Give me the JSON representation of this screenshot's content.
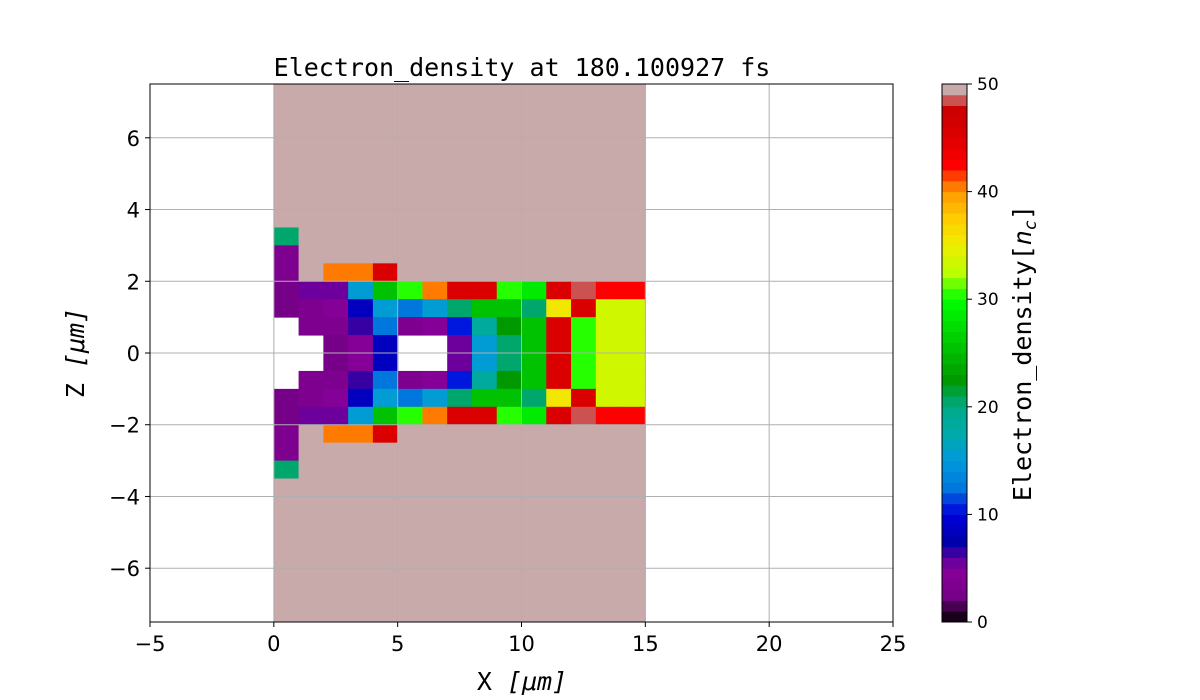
{
  "chart_data": {
    "type": "heatmap",
    "title": "Electron_density at 180.100927 fs",
    "xlabel": "X [μm]",
    "ylabel": "Z [μm]",
    "xlabel_parts": {
      "name": "X ",
      "unit": "[μm]"
    },
    "ylabel_parts": {
      "name": "Z ",
      "unit": "[μm]"
    },
    "colorbar_label": "Electron_density[n_c]",
    "colorbar_label_parts": {
      "name": "Electron_density[",
      "sym": "n",
      "sub": "c",
      "close": "]"
    },
    "colormap": "nipy_spectral",
    "xlim": [
      -5,
      25
    ],
    "ylim": [
      -7.5,
      7.5
    ],
    "clim": [
      0,
      50
    ],
    "levels": 50,
    "grid": true,
    "xticks": [
      -5,
      0,
      5,
      10,
      15,
      20,
      25
    ],
    "xtick_labels": [
      "−5",
      "0",
      "5",
      "10",
      "15",
      "20",
      "25"
    ],
    "yticks": [
      -6,
      -4,
      -2,
      0,
      2,
      4,
      6
    ],
    "ytick_labels": [
      "−6",
      "−4",
      "−2",
      "0",
      "2",
      "4",
      "6"
    ],
    "cbar_ticks": [
      0,
      10,
      20,
      30,
      40,
      50
    ],
    "cbar_tick_labels": [
      "0",
      "10",
      "20",
      "30",
      "40",
      "50"
    ],
    "over_color": "#c8aaab",
    "x_edges_start": -5,
    "x_step": 1,
    "z_edges_start": 7.5,
    "z_step": -0.5,
    "values": [
      [
        null,
        null,
        null,
        null,
        null,
        50,
        50,
        50,
        50,
        50,
        50,
        50,
        50,
        50,
        50,
        50,
        50,
        50,
        50,
        50,
        null,
        null,
        null,
        null,
        null,
        null,
        null,
        null,
        null,
        null
      ],
      [
        null,
        null,
        null,
        null,
        null,
        50,
        50,
        50,
        50,
        50,
        50,
        50,
        50,
        50,
        50,
        50,
        50,
        50,
        50,
        50,
        null,
        null,
        null,
        null,
        null,
        null,
        null,
        null,
        null,
        null
      ],
      [
        null,
        null,
        null,
        null,
        null,
        50,
        50,
        50,
        50,
        50,
        50,
        50,
        50,
        50,
        50,
        50,
        50,
        50,
        50,
        50,
        null,
        null,
        null,
        null,
        null,
        null,
        null,
        null,
        null,
        null
      ],
      [
        null,
        null,
        null,
        null,
        null,
        50,
        50,
        50,
        50,
        50,
        50,
        50,
        50,
        50,
        50,
        50,
        50,
        50,
        50,
        50,
        null,
        null,
        null,
        null,
        null,
        null,
        null,
        null,
        null,
        null
      ],
      [
        null,
        null,
        null,
        null,
        null,
        50,
        50,
        50,
        50,
        50,
        50,
        50,
        50,
        50,
        50,
        50,
        50,
        50,
        50,
        50,
        null,
        null,
        null,
        null,
        null,
        null,
        null,
        null,
        null,
        null
      ],
      [
        null,
        null,
        null,
        null,
        null,
        50,
        50,
        50,
        50,
        50,
        50,
        50,
        50,
        50,
        50,
        50,
        50,
        50,
        50,
        50,
        null,
        null,
        null,
        null,
        null,
        null,
        null,
        null,
        null,
        null
      ],
      [
        null,
        null,
        null,
        null,
        null,
        50,
        50,
        50,
        50,
        50,
        50,
        50,
        50,
        50,
        50,
        50,
        50,
        50,
        50,
        50,
        null,
        null,
        null,
        null,
        null,
        null,
        null,
        null,
        null,
        null
      ],
      [
        null,
        null,
        null,
        null,
        null,
        50,
        50,
        50,
        50,
        50,
        50,
        50,
        50,
        50,
        50,
        50,
        50,
        50,
        50,
        50,
        null,
        null,
        null,
        null,
        null,
        null,
        null,
        null,
        null,
        null
      ],
      [
        null,
        null,
        null,
        null,
        null,
        20,
        50,
        50,
        50,
        50,
        50,
        50,
        50,
        50,
        50,
        50,
        50,
        50,
        50,
        50,
        null,
        null,
        null,
        null,
        null,
        null,
        null,
        null,
        null,
        null
      ],
      [
        null,
        null,
        null,
        null,
        null,
        3,
        50,
        50,
        50,
        50,
        50,
        50,
        50,
        50,
        50,
        50,
        50,
        50,
        50,
        50,
        null,
        null,
        null,
        null,
        null,
        null,
        null,
        null,
        null,
        null
      ],
      [
        null,
        null,
        null,
        null,
        null,
        3,
        50,
        40,
        40,
        45,
        50,
        50,
        50,
        50,
        50,
        50,
        50,
        50,
        50,
        50,
        null,
        null,
        null,
        null,
        null,
        null,
        null,
        null,
        null,
        null
      ],
      [
        null,
        null,
        null,
        null,
        null,
        2,
        5,
        5,
        15,
        25,
        30,
        40,
        45,
        45,
        30,
        28,
        45,
        48,
        42,
        42,
        null,
        null,
        null,
        null,
        null,
        null,
        null,
        null,
        null,
        null
      ],
      [
        null,
        null,
        null,
        null,
        null,
        2,
        3,
        4,
        8,
        15,
        12,
        15,
        20,
        25,
        25,
        20,
        35,
        45,
        33,
        33,
        null,
        null,
        null,
        null,
        null,
        null,
        null,
        null,
        null,
        null
      ],
      [
        null,
        null,
        null,
        null,
        null,
        null,
        3,
        3,
        6,
        12,
        3,
        4,
        10,
        18,
        22,
        25,
        45,
        30,
        33,
        33,
        null,
        null,
        null,
        null,
        null,
        null,
        null,
        null,
        null,
        null
      ],
      [
        null,
        null,
        null,
        null,
        null,
        null,
        null,
        2,
        4,
        8,
        null,
        null,
        5,
        15,
        20,
        25,
        45,
        30,
        33,
        33,
        null,
        null,
        null,
        null,
        null,
        null,
        null,
        null,
        null,
        null
      ],
      [
        null,
        null,
        null,
        null,
        null,
        null,
        null,
        2,
        4,
        8,
        null,
        null,
        5,
        15,
        20,
        25,
        45,
        30,
        33,
        33,
        null,
        null,
        null,
        null,
        null,
        null,
        null,
        null,
        null,
        null
      ],
      [
        null,
        null,
        null,
        null,
        null,
        null,
        3,
        3,
        6,
        12,
        3,
        4,
        10,
        18,
        22,
        25,
        45,
        30,
        33,
        33,
        null,
        null,
        null,
        null,
        null,
        null,
        null,
        null,
        null,
        null
      ],
      [
        null,
        null,
        null,
        null,
        null,
        2,
        3,
        4,
        8,
        15,
        12,
        15,
        20,
        25,
        25,
        20,
        35,
        45,
        33,
        33,
        null,
        null,
        null,
        null,
        null,
        null,
        null,
        null,
        null,
        null
      ],
      [
        null,
        null,
        null,
        null,
        null,
        2,
        5,
        5,
        15,
        25,
        30,
        40,
        45,
        45,
        30,
        28,
        45,
        48,
        42,
        42,
        null,
        null,
        null,
        null,
        null,
        null,
        null,
        null,
        null,
        null
      ],
      [
        null,
        null,
        null,
        null,
        null,
        3,
        50,
        40,
        40,
        45,
        50,
        50,
        50,
        50,
        50,
        50,
        50,
        50,
        50,
        50,
        null,
        null,
        null,
        null,
        null,
        null,
        null,
        null,
        null,
        null
      ],
      [
        null,
        null,
        null,
        null,
        null,
        3,
        50,
        50,
        50,
        50,
        50,
        50,
        50,
        50,
        50,
        50,
        50,
        50,
        50,
        50,
        null,
        null,
        null,
        null,
        null,
        null,
        null,
        null,
        null,
        null
      ],
      [
        null,
        null,
        null,
        null,
        null,
        20,
        50,
        50,
        50,
        50,
        50,
        50,
        50,
        50,
        50,
        50,
        50,
        50,
        50,
        50,
        null,
        null,
        null,
        null,
        null,
        null,
        null,
        null,
        null,
        null
      ],
      [
        null,
        null,
        null,
        null,
        null,
        50,
        50,
        50,
        50,
        50,
        50,
        50,
        50,
        50,
        50,
        50,
        50,
        50,
        50,
        50,
        null,
        null,
        null,
        null,
        null,
        null,
        null,
        null,
        null,
        null
      ],
      [
        null,
        null,
        null,
        null,
        null,
        50,
        50,
        50,
        50,
        50,
        50,
        50,
        50,
        50,
        50,
        50,
        50,
        50,
        50,
        50,
        null,
        null,
        null,
        null,
        null,
        null,
        null,
        null,
        null,
        null
      ],
      [
        null,
        null,
        null,
        null,
        null,
        50,
        50,
        50,
        50,
        50,
        50,
        50,
        50,
        50,
        50,
        50,
        50,
        50,
        50,
        50,
        null,
        null,
        null,
        null,
        null,
        null,
        null,
        null,
        null,
        null
      ],
      [
        null,
        null,
        null,
        null,
        null,
        50,
        50,
        50,
        50,
        50,
        50,
        50,
        50,
        50,
        50,
        50,
        50,
        50,
        50,
        50,
        null,
        null,
        null,
        null,
        null,
        null,
        null,
        null,
        null,
        null
      ],
      [
        null,
        null,
        null,
        null,
        null,
        50,
        50,
        50,
        50,
        50,
        50,
        50,
        50,
        50,
        50,
        50,
        50,
        50,
        50,
        50,
        null,
        null,
        null,
        null,
        null,
        null,
        null,
        null,
        null,
        null
      ],
      [
        null,
        null,
        null,
        null,
        null,
        50,
        50,
        50,
        50,
        50,
        50,
        50,
        50,
        50,
        50,
        50,
        50,
        50,
        50,
        50,
        null,
        null,
        null,
        null,
        null,
        null,
        null,
        null,
        null,
        null
      ],
      [
        null,
        null,
        null,
        null,
        null,
        50,
        50,
        50,
        50,
        50,
        50,
        50,
        50,
        50,
        50,
        50,
        50,
        50,
        50,
        50,
        null,
        null,
        null,
        null,
        null,
        null,
        null,
        null,
        null,
        null
      ],
      [
        null,
        null,
        null,
        null,
        null,
        50,
        50,
        50,
        50,
        50,
        50,
        50,
        50,
        50,
        50,
        50,
        50,
        50,
        50,
        50,
        null,
        null,
        null,
        null,
        null,
        null,
        null,
        null,
        null,
        null
      ]
    ]
  }
}
